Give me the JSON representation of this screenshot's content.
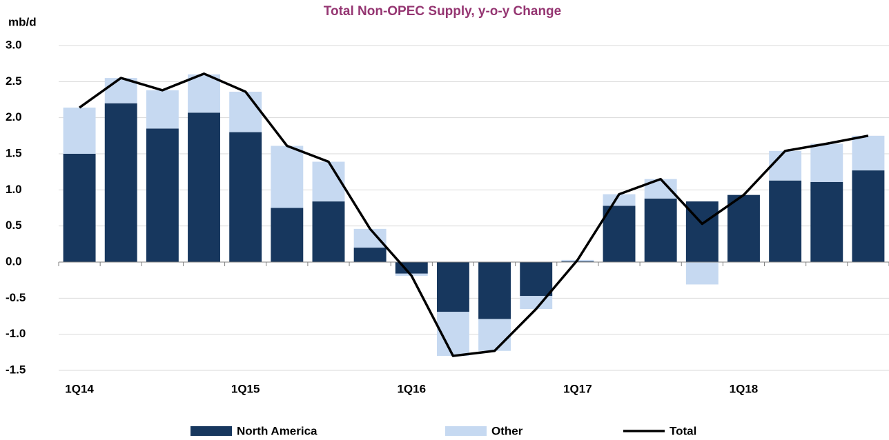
{
  "chart_data": {
    "type": "stacked-bar-line",
    "title": "Total Non-OPEC Supply, y-o-y Change",
    "y_label": "mb/d",
    "categories": [
      "1Q14",
      null,
      null,
      null,
      "1Q15",
      null,
      null,
      null,
      "1Q16",
      null,
      null,
      null,
      "1Q17",
      null,
      null,
      null,
      "1Q18",
      null,
      null,
      null
    ],
    "series": [
      {
        "name": "North America",
        "kind": "bar",
        "color": "#17375e",
        "values": [
          1.5,
          2.2,
          1.85,
          2.07,
          1.8,
          0.75,
          0.84,
          0.2,
          -0.16,
          -0.69,
          -0.79,
          -0.47,
          0.01,
          0.78,
          0.88,
          0.84,
          0.93,
          1.13,
          1.11,
          1.27
        ]
      },
      {
        "name": "Other",
        "kind": "bar",
        "color": "#c6d9f1",
        "values": [
          0.64,
          0.35,
          0.53,
          0.53,
          0.56,
          0.86,
          0.55,
          0.26,
          -0.03,
          -0.61,
          -0.44,
          -0.18,
          0.02,
          0.16,
          0.27,
          -0.31,
          0.0,
          0.41,
          0.53,
          0.48
        ]
      },
      {
        "name": "Total",
        "kind": "line",
        "color": "#000000",
        "values": [
          2.14,
          2.55,
          2.38,
          2.61,
          2.36,
          1.61,
          1.39,
          0.46,
          -0.19,
          -1.3,
          -1.23,
          -0.65,
          0.03,
          0.94,
          1.15,
          0.53,
          0.93,
          1.54,
          1.64,
          1.75
        ]
      }
    ],
    "ylim": [
      -1.5,
      3.0
    ],
    "yticks": [
      {
        "value": 3,
        "label": "3.0"
      },
      2.5,
      {
        "value": 2,
        "label": "2.0"
      },
      1.5,
      {
        "value": 1,
        "label": "1.0"
      },
      0.5,
      {
        "value": 0,
        "label": "0.0"
      },
      -0.5,
      {
        "value": -1,
        "label": "-1.0"
      },
      -1.5
    ],
    "grid": true
  }
}
